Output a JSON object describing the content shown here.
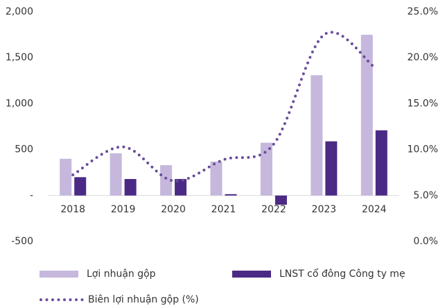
{
  "chart_data": {
    "type": "bar",
    "categories": [
      "2018",
      "2019",
      "2020",
      "2021",
      "2022",
      "2023",
      "2024"
    ],
    "series": [
      {
        "name": "Lợi nhuận gộp",
        "color": "#c5b8dc",
        "values": [
          400,
          460,
          330,
          370,
          575,
          1310,
          1750
        ]
      },
      {
        "name": "LNST cổ đông Công ty mẹ",
        "color": "#4b2a85",
        "values": [
          200,
          180,
          180,
          15,
          -100,
          590,
          710
        ]
      },
      {
        "name": "Biên lợi nhuận gộp (%)",
        "color": "#6a4c9c",
        "type": "line",
        "axis": "y2",
        "values": [
          7.25,
          10.3,
          6.6,
          8.9,
          10.6,
          22.5,
          19.0
        ]
      }
    ],
    "ylim": [
      -500,
      2000
    ],
    "yticks": [
      {
        "value": -500,
        "label": "-500"
      },
      {
        "value": 0,
        "label": "-"
      },
      500,
      {
        "value": 1000,
        "label": "1,000"
      },
      {
        "value": 1500,
        "label": "1,500"
      },
      {
        "value": 2000,
        "label": "2,000"
      }
    ],
    "y2lim": [
      0,
      25
    ],
    "y2ticks": [
      {
        "value": 0,
        "label": "0.0%"
      },
      {
        "value": 5,
        "label": "5.0%"
      },
      {
        "value": 10,
        "label": "10.0%"
      },
      {
        "value": 15,
        "label": "15.0%"
      },
      {
        "value": 20,
        "label": "20.0%"
      },
      {
        "value": 25,
        "label": "25.0%"
      }
    ],
    "grid": false
  }
}
